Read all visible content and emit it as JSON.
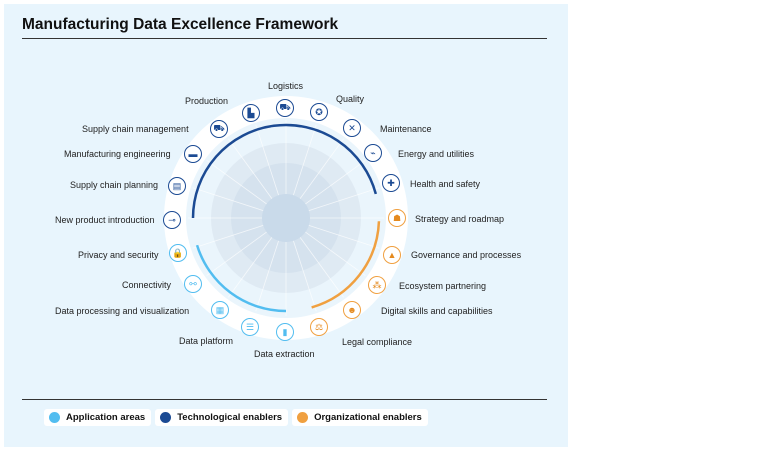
{
  "title": "Manufacturing Data Excellence Framework",
  "colors": {
    "application": "#52bdf0",
    "technological": "#1b4a93",
    "organizational": "#f0a040"
  },
  "items": [
    {
      "label": "Logistics",
      "group": "technological",
      "icon": "forklift-icon",
      "glyph": "⛟"
    },
    {
      "label": "Quality",
      "group": "technological",
      "icon": "award-ribbon-icon",
      "glyph": "✪"
    },
    {
      "label": "Maintenance",
      "group": "technological",
      "icon": "tools-icon",
      "glyph": "✕"
    },
    {
      "label": "Energy and utilities",
      "group": "technological",
      "icon": "plug-icon",
      "glyph": "⌁"
    },
    {
      "label": "Health and safety",
      "group": "technological",
      "icon": "medical-hand-icon",
      "glyph": "✚"
    },
    {
      "label": "Strategy and roadmap",
      "group": "organizational",
      "icon": "people-board-icon",
      "glyph": "☗"
    },
    {
      "label": "Governance and processes",
      "group": "organizational",
      "icon": "pyramid-icon",
      "glyph": "▲"
    },
    {
      "label": "Ecosystem partnering",
      "group": "organizational",
      "icon": "network-icon",
      "glyph": "⁂"
    },
    {
      "label": "Digital skills and capabilities",
      "group": "organizational",
      "icon": "head-gear-icon",
      "glyph": "☻"
    },
    {
      "label": "Legal compliance",
      "group": "organizational",
      "icon": "gavel-icon",
      "glyph": "⚖"
    },
    {
      "label": "Data extraction",
      "group": "application",
      "icon": "data-extraction-icon",
      "glyph": "▮"
    },
    {
      "label": "Data platform",
      "group": "application",
      "icon": "database-icon",
      "glyph": "☰"
    },
    {
      "label": "Data processing and visualization",
      "group": "application",
      "icon": "visualization-icon",
      "glyph": "▦"
    },
    {
      "label": "Connectivity",
      "group": "application",
      "icon": "connector-icon",
      "glyph": "⚯"
    },
    {
      "label": "Privacy and security",
      "group": "application",
      "icon": "lock-icon",
      "glyph": "🔒"
    },
    {
      "label": "New product introduction",
      "group": "technological",
      "icon": "microscope-icon",
      "glyph": "⊸"
    },
    {
      "label": "Supply chain planning",
      "group": "technological",
      "icon": "planning-board-icon",
      "glyph": "▤"
    },
    {
      "label": "Manufacturing engineering",
      "group": "technological",
      "icon": "machine-icon",
      "glyph": "▬"
    },
    {
      "label": "Supply chain management",
      "group": "technological",
      "icon": "truck-icon",
      "glyph": "⛟"
    },
    {
      "label": "Production",
      "group": "technological",
      "icon": "factory-icon",
      "glyph": "▙"
    }
  ],
  "legend": [
    {
      "label": "Application areas",
      "color": "#52bdf0"
    },
    {
      "label": "Technological enablers",
      "color": "#1b4a93"
    },
    {
      "label": "Organizational enablers",
      "color": "#f0a040"
    }
  ]
}
